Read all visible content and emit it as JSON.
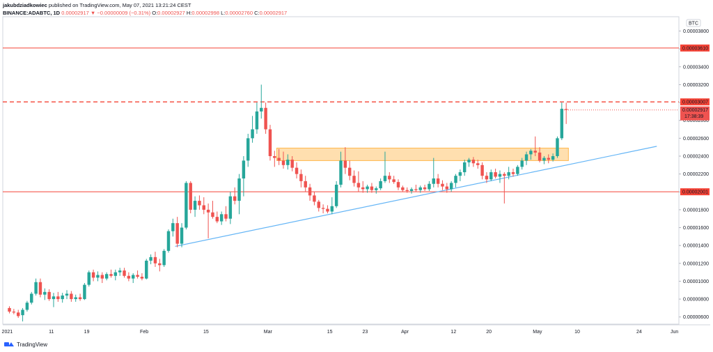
{
  "header": {
    "author": "jakubdziadkowiec",
    "published": "published on TradingView.com, May 07, 2021 13:21:24 CEST",
    "symbol": "BINANCE:ADABTC, 1D",
    "last": "0.00002917",
    "change": "▼ −0.00000009 (−0.31%)",
    "o_label": "O:",
    "o_value": "0.00002927",
    "h_label": "H:",
    "h_value": "0.00002998",
    "l_label": "L:",
    "l_value": "0.00002760",
    "c_label": "C:",
    "c_value": "0.00002917"
  },
  "footer": {
    "brand": "TradingView"
  },
  "colors": {
    "up": "#26a69a",
    "down": "#ef5350",
    "zone": "#ffb74d",
    "trend": "#64b5f6",
    "level": "#f44336"
  },
  "chart_data": {
    "type": "candlestick",
    "currency_badge": "BTC",
    "y_ticks": [
      "0.00003800",
      "0.00003600",
      "0.00003400",
      "0.00003200",
      "0.00003000",
      "0.00002800",
      "0.00002600",
      "0.00002400",
      "0.00002200",
      "0.00002000",
      "0.00001800",
      "0.00001600",
      "0.00001400",
      "0.00001200",
      "0.00001000",
      "0.00000800",
      "0.00000600"
    ],
    "y_range": [
      5.2e-06,
      3.96e-05
    ],
    "x_ticks": [
      {
        "label": "2021",
        "date": "2021-01-01"
      },
      {
        "label": "11",
        "date": "2021-01-11"
      },
      {
        "label": "19",
        "date": "2021-01-19"
      },
      {
        "label": "Feb",
        "date": "2021-02-01"
      },
      {
        "label": "15",
        "date": "2021-02-15"
      },
      {
        "label": "Mar",
        "date": "2021-03-01"
      },
      {
        "label": "15",
        "date": "2021-03-15"
      },
      {
        "label": "23",
        "date": "2021-03-23"
      },
      {
        "label": "Apr",
        "date": "2021-04-01"
      },
      {
        "label": "12",
        "date": "2021-04-12"
      },
      {
        "label": "20",
        "date": "2021-04-20"
      },
      {
        "label": "May",
        "date": "2021-05-01"
      },
      {
        "label": "10",
        "date": "2021-05-10"
      },
      {
        "label": "24",
        "date": "2021-05-24"
      },
      {
        "label": "Jun",
        "date": "2021-06-01"
      }
    ],
    "x_range": [
      "2020-12-31",
      "2021-06-02"
    ],
    "horizontal_levels": [
      {
        "price": 3.61e-05,
        "label": "0.00003610",
        "style": "solid"
      },
      {
        "price": 3.007e-05,
        "label": "0.00003007",
        "style": "dashed"
      },
      {
        "price": 2.001e-05,
        "label": "0.00002001",
        "style": "solid"
      }
    ],
    "last_price": {
      "price": 2.917e-05,
      "label": "0.00002917",
      "countdown": "17:38:39"
    },
    "zone": {
      "from": "2021-03-03",
      "to": "2021-05-08",
      "low": 2.35e-05,
      "high": 2.49e-05
    },
    "trendline": {
      "from": {
        "date": "2021-02-08",
        "price": 1.39e-05
      },
      "to": {
        "date": "2021-05-28",
        "price": 2.51e-05
      }
    },
    "candles": [
      {
        "d": "2021-01-01",
        "o": 7e-06,
        "h": 7.2e-06,
        "l": 6.4e-06,
        "c": 6.6e-06
      },
      {
        "d": "2021-01-02",
        "o": 6.6e-06,
        "h": 6.9e-06,
        "l": 6.3e-06,
        "c": 6.5e-06
      },
      {
        "d": "2021-01-03",
        "o": 6.5e-06,
        "h": 6.8e-06,
        "l": 5.9e-06,
        "c": 6.1e-06
      },
      {
        "d": "2021-01-04",
        "o": 6.2e-06,
        "h": 7e-06,
        "l": 5.5e-06,
        "c": 6.8e-06
      },
      {
        "d": "2021-01-05",
        "o": 6.8e-06,
        "h": 7.8e-06,
        "l": 6.6e-06,
        "c": 7.6e-06
      },
      {
        "d": "2021-01-06",
        "o": 7.6e-06,
        "h": 8.8e-06,
        "l": 7.4e-06,
        "c": 8.6e-06
      },
      {
        "d": "2021-01-07",
        "o": 8.6e-06,
        "h": 1.03e-05,
        "l": 8.4e-06,
        "c": 9.9e-06
      },
      {
        "d": "2021-01-08",
        "o": 9.9e-06,
        "h": 1.03e-05,
        "l": 8.2e-06,
        "c": 8.5e-06
      },
      {
        "d": "2021-01-09",
        "o": 8.5e-06,
        "h": 9.2e-06,
        "l": 7.9e-06,
        "c": 8.8e-06
      },
      {
        "d": "2021-01-10",
        "o": 8.8e-06,
        "h": 9.1e-06,
        "l": 7.8e-06,
        "c": 8e-06
      },
      {
        "d": "2021-01-11",
        "o": 8e-06,
        "h": 8.7e-06,
        "l": 7.1e-06,
        "c": 8.3e-06
      },
      {
        "d": "2021-01-12",
        "o": 8.3e-06,
        "h": 8.8e-06,
        "l": 7.7e-06,
        "c": 8e-06
      },
      {
        "d": "2021-01-13",
        "o": 8e-06,
        "h": 8.7e-06,
        "l": 7.6e-06,
        "c": 8.4e-06
      },
      {
        "d": "2021-01-14",
        "o": 8.4e-06,
        "h": 9e-06,
        "l": 8e-06,
        "c": 8.6e-06
      },
      {
        "d": "2021-01-15",
        "o": 8.6e-06,
        "h": 8.9e-06,
        "l": 7.7e-06,
        "c": 8e-06
      },
      {
        "d": "2021-01-16",
        "o": 8e-06,
        "h": 8.5e-06,
        "l": 7.7e-06,
        "c": 8.2e-06
      },
      {
        "d": "2021-01-17",
        "o": 8.2e-06,
        "h": 8.6e-06,
        "l": 7.8e-06,
        "c": 8e-06
      },
      {
        "d": "2021-01-18",
        "o": 8e-06,
        "h": 9.8e-06,
        "l": 7.9e-06,
        "c": 9.6e-06
      },
      {
        "d": "2021-01-19",
        "o": 9.6e-06,
        "h": 1.12e-05,
        "l": 9.4e-06,
        "c": 1.1e-05
      },
      {
        "d": "2021-01-20",
        "o": 1.1e-05,
        "h": 1.13e-05,
        "l": 1e-05,
        "c": 1.04e-05
      },
      {
        "d": "2021-01-21",
        "o": 1.04e-05,
        "h": 1.11e-05,
        "l": 1e-05,
        "c": 1.07e-05
      },
      {
        "d": "2021-01-22",
        "o": 1.07e-05,
        "h": 1.1e-05,
        "l": 9.8e-06,
        "c": 1.03e-05
      },
      {
        "d": "2021-01-23",
        "o": 1.03e-05,
        "h": 1.1e-05,
        "l": 1.01e-05,
        "c": 1.08e-05
      },
      {
        "d": "2021-01-24",
        "o": 1.08e-05,
        "h": 1.13e-05,
        "l": 1.04e-05,
        "c": 1.06e-05
      },
      {
        "d": "2021-01-25",
        "o": 1.06e-05,
        "h": 1.13e-05,
        "l": 1.01e-05,
        "c": 1.1e-05
      },
      {
        "d": "2021-01-26",
        "o": 1.1e-05,
        "h": 1.15e-05,
        "l": 1.06e-05,
        "c": 1.12e-05
      },
      {
        "d": "2021-01-27",
        "o": 1.12e-05,
        "h": 1.15e-05,
        "l": 1.04e-05,
        "c": 1.06e-05
      },
      {
        "d": "2021-01-28",
        "o": 1.06e-05,
        "h": 1.1e-05,
        "l": 1e-05,
        "c": 1.03e-05
      },
      {
        "d": "2021-01-29",
        "o": 1.03e-05,
        "h": 1.09e-05,
        "l": 9.8e-06,
        "c": 1.07e-05
      },
      {
        "d": "2021-01-30",
        "o": 1.07e-05,
        "h": 1.12e-05,
        "l": 1.03e-05,
        "c": 1.05e-05
      },
      {
        "d": "2021-01-31",
        "o": 1.05e-05,
        "h": 1.09e-05,
        "l": 1.01e-05,
        "c": 1.03e-05
      },
      {
        "d": "2021-02-01",
        "o": 1.03e-05,
        "h": 1.25e-05,
        "l": 1.02e-05,
        "c": 1.23e-05
      },
      {
        "d": "2021-02-02",
        "o": 1.23e-05,
        "h": 1.3e-05,
        "l": 1.19e-05,
        "c": 1.27e-05
      },
      {
        "d": "2021-02-03",
        "o": 1.27e-05,
        "h": 1.33e-05,
        "l": 1.16e-05,
        "c": 1.2e-05
      },
      {
        "d": "2021-02-04",
        "o": 1.2e-05,
        "h": 1.25e-05,
        "l": 1.11e-05,
        "c": 1.18e-05
      },
      {
        "d": "2021-02-05",
        "o": 1.18e-05,
        "h": 1.36e-05,
        "l": 1.16e-05,
        "c": 1.34e-05
      },
      {
        "d": "2021-02-06",
        "o": 1.34e-05,
        "h": 1.58e-05,
        "l": 1.32e-05,
        "c": 1.56e-05
      },
      {
        "d": "2021-02-07",
        "o": 1.56e-05,
        "h": 1.7e-05,
        "l": 1.5e-05,
        "c": 1.65e-05
      },
      {
        "d": "2021-02-08",
        "o": 1.65e-05,
        "h": 1.72e-05,
        "l": 1.38e-05,
        "c": 1.42e-05
      },
      {
        "d": "2021-02-09",
        "o": 1.42e-05,
        "h": 1.65e-05,
        "l": 1.38e-05,
        "c": 1.6e-05
      },
      {
        "d": "2021-02-10",
        "o": 1.6e-05,
        "h": 2.12e-05,
        "l": 1.58e-05,
        "c": 2.1e-05
      },
      {
        "d": "2021-02-11",
        "o": 2.1e-05,
        "h": 2.12e-05,
        "l": 1.76e-05,
        "c": 1.8e-05
      },
      {
        "d": "2021-02-12",
        "o": 1.8e-05,
        "h": 1.95e-05,
        "l": 1.72e-05,
        "c": 1.9e-05
      },
      {
        "d": "2021-02-13",
        "o": 1.9e-05,
        "h": 1.96e-05,
        "l": 1.8e-05,
        "c": 1.85e-05
      },
      {
        "d": "2021-02-14",
        "o": 1.85e-05,
        "h": 1.94e-05,
        "l": 1.75e-05,
        "c": 1.8e-05
      },
      {
        "d": "2021-02-15",
        "o": 1.8e-05,
        "h": 1.87e-05,
        "l": 1.48e-05,
        "c": 1.77e-05
      },
      {
        "d": "2021-02-16",
        "o": 1.77e-05,
        "h": 1.9e-05,
        "l": 1.7e-05,
        "c": 1.72e-05
      },
      {
        "d": "2021-02-17",
        "o": 1.72e-05,
        "h": 1.78e-05,
        "l": 1.65e-05,
        "c": 1.67e-05
      },
      {
        "d": "2021-02-18",
        "o": 1.67e-05,
        "h": 1.78e-05,
        "l": 1.63e-05,
        "c": 1.75e-05
      },
      {
        "d": "2021-02-19",
        "o": 1.75e-05,
        "h": 1.84e-05,
        "l": 1.67e-05,
        "c": 1.7e-05
      },
      {
        "d": "2021-02-20",
        "o": 1.7e-05,
        "h": 2e-05,
        "l": 1.64e-05,
        "c": 1.95e-05
      },
      {
        "d": "2021-02-21",
        "o": 1.95e-05,
        "h": 2.05e-05,
        "l": 1.86e-05,
        "c": 1.9e-05
      },
      {
        "d": "2021-02-22",
        "o": 1.9e-05,
        "h": 2.2e-05,
        "l": 1.75e-05,
        "c": 2.15e-05
      },
      {
        "d": "2021-02-23",
        "o": 2.15e-05,
        "h": 2.4e-05,
        "l": 1.95e-05,
        "c": 2.35e-05
      },
      {
        "d": "2021-02-24",
        "o": 2.35e-05,
        "h": 2.65e-05,
        "l": 2.28e-05,
        "c": 2.6e-05
      },
      {
        "d": "2021-02-25",
        "o": 2.6e-05,
        "h": 2.85e-05,
        "l": 2.55e-05,
        "c": 2.7e-05
      },
      {
        "d": "2021-02-26",
        "o": 2.7e-05,
        "h": 3e-05,
        "l": 2.65e-05,
        "c": 2.9e-05
      },
      {
        "d": "2021-02-27",
        "o": 2.9e-05,
        "h": 3.2e-05,
        "l": 2.82e-05,
        "c": 2.94e-05
      },
      {
        "d": "2021-02-28",
        "o": 2.94e-05,
        "h": 3e-05,
        "l": 2.65e-05,
        "c": 2.7e-05
      },
      {
        "d": "2021-03-01",
        "o": 2.7e-05,
        "h": 2.75e-05,
        "l": 2.35e-05,
        "c": 2.4e-05
      },
      {
        "d": "2021-03-02",
        "o": 2.4e-05,
        "h": 2.46e-05,
        "l": 2.28e-05,
        "c": 2.38e-05
      },
      {
        "d": "2021-03-03",
        "o": 2.38e-05,
        "h": 2.48e-05,
        "l": 2.3e-05,
        "c": 2.35e-05
      },
      {
        "d": "2021-03-04",
        "o": 2.35e-05,
        "h": 2.45e-05,
        "l": 2.26e-05,
        "c": 2.3e-05
      },
      {
        "d": "2021-03-05",
        "o": 2.3e-05,
        "h": 2.42e-05,
        "l": 2.25e-05,
        "c": 2.36e-05
      },
      {
        "d": "2021-03-06",
        "o": 2.36e-05,
        "h": 2.4e-05,
        "l": 2.23e-05,
        "c": 2.27e-05
      },
      {
        "d": "2021-03-07",
        "o": 2.27e-05,
        "h": 2.33e-05,
        "l": 2.15e-05,
        "c": 2.2e-05
      },
      {
        "d": "2021-03-08",
        "o": 2.2e-05,
        "h": 2.25e-05,
        "l": 2.05e-05,
        "c": 2.12e-05
      },
      {
        "d": "2021-03-09",
        "o": 2.12e-05,
        "h": 2.18e-05,
        "l": 2e-05,
        "c": 2.05e-05
      },
      {
        "d": "2021-03-10",
        "o": 2.05e-05,
        "h": 2.09e-05,
        "l": 1.9e-05,
        "c": 1.96e-05
      },
      {
        "d": "2021-03-11",
        "o": 1.96e-05,
        "h": 2e-05,
        "l": 1.85e-05,
        "c": 1.89e-05
      },
      {
        "d": "2021-03-12",
        "o": 1.89e-05,
        "h": 1.91e-05,
        "l": 1.78e-05,
        "c": 1.82e-05
      },
      {
        "d": "2021-03-13",
        "o": 1.82e-05,
        "h": 1.86e-05,
        "l": 1.76e-05,
        "c": 1.81e-05
      },
      {
        "d": "2021-03-14",
        "o": 1.81e-05,
        "h": 1.85e-05,
        "l": 1.76e-05,
        "c": 1.78e-05
      },
      {
        "d": "2021-03-15",
        "o": 1.78e-05,
        "h": 1.94e-05,
        "l": 1.75e-05,
        "c": 1.84e-05
      },
      {
        "d": "2021-03-16",
        "o": 1.84e-05,
        "h": 2.12e-05,
        "l": 1.82e-05,
        "c": 2.08e-05
      },
      {
        "d": "2021-03-17",
        "o": 2.08e-05,
        "h": 2.45e-05,
        "l": 2.05e-05,
        "c": 2.35e-05
      },
      {
        "d": "2021-03-18",
        "o": 2.35e-05,
        "h": 2.5e-05,
        "l": 2.2e-05,
        "c": 2.27e-05
      },
      {
        "d": "2021-03-19",
        "o": 2.27e-05,
        "h": 2.35e-05,
        "l": 2.13e-05,
        "c": 2.18e-05
      },
      {
        "d": "2021-03-20",
        "o": 2.18e-05,
        "h": 2.24e-05,
        "l": 2.06e-05,
        "c": 2.1e-05
      },
      {
        "d": "2021-03-21",
        "o": 2.1e-05,
        "h": 2.23e-05,
        "l": 2e-05,
        "c": 2.05e-05
      },
      {
        "d": "2021-03-22",
        "o": 2.05e-05,
        "h": 2.12e-05,
        "l": 1.99e-05,
        "c": 2.03e-05
      },
      {
        "d": "2021-03-23",
        "o": 2.03e-05,
        "h": 2.08e-05,
        "l": 1.99e-05,
        "c": 2.06e-05
      },
      {
        "d": "2021-03-24",
        "o": 2.06e-05,
        "h": 2.1e-05,
        "l": 1.99e-05,
        "c": 2.02e-05
      },
      {
        "d": "2021-03-25",
        "o": 2.02e-05,
        "h": 2.06e-05,
        "l": 1.98e-05,
        "c": 2.04e-05
      },
      {
        "d": "2021-03-26",
        "o": 2.04e-05,
        "h": 2.15e-05,
        "l": 2.02e-05,
        "c": 2.12e-05
      },
      {
        "d": "2021-03-27",
        "o": 2.12e-05,
        "h": 2.45e-05,
        "l": 2.1e-05,
        "c": 2.18e-05
      },
      {
        "d": "2021-03-28",
        "o": 2.18e-05,
        "h": 2.22e-05,
        "l": 2.1e-05,
        "c": 2.14e-05
      },
      {
        "d": "2021-03-29",
        "o": 2.14e-05,
        "h": 2.18e-05,
        "l": 2.09e-05,
        "c": 2.11e-05
      },
      {
        "d": "2021-03-30",
        "o": 2.11e-05,
        "h": 2.14e-05,
        "l": 2.02e-05,
        "c": 2.05e-05
      },
      {
        "d": "2021-03-31",
        "o": 2.05e-05,
        "h": 2.07e-05,
        "l": 2e-05,
        "c": 2.02e-05
      },
      {
        "d": "2021-04-01",
        "o": 2.02e-05,
        "h": 2.05e-05,
        "l": 1.99e-05,
        "c": 2.01e-05
      },
      {
        "d": "2021-04-02",
        "o": 2.01e-05,
        "h": 2.05e-05,
        "l": 1.98e-05,
        "c": 2.03e-05
      },
      {
        "d": "2021-04-03",
        "o": 2.03e-05,
        "h": 2.08e-05,
        "l": 2e-05,
        "c": 2.02e-05
      },
      {
        "d": "2021-04-04",
        "o": 2.02e-05,
        "h": 2.07e-05,
        "l": 1.99e-05,
        "c": 2.05e-05
      },
      {
        "d": "2021-04-05",
        "o": 2.05e-05,
        "h": 2.08e-05,
        "l": 2.01e-05,
        "c": 2.03e-05
      },
      {
        "d": "2021-04-06",
        "o": 2.03e-05,
        "h": 2.12e-05,
        "l": 2.01e-05,
        "c": 2.09e-05
      },
      {
        "d": "2021-04-07",
        "o": 2.09e-05,
        "h": 2.38e-05,
        "l": 2.05e-05,
        "c": 2.15e-05
      },
      {
        "d": "2021-04-08",
        "o": 2.15e-05,
        "h": 2.2e-05,
        "l": 2.05e-05,
        "c": 2.09e-05
      },
      {
        "d": "2021-04-09",
        "o": 2.09e-05,
        "h": 2.13e-05,
        "l": 2.02e-05,
        "c": 2.06e-05
      },
      {
        "d": "2021-04-10",
        "o": 2.06e-05,
        "h": 2.1e-05,
        "l": 1.99e-05,
        "c": 2.03e-05
      },
      {
        "d": "2021-04-11",
        "o": 2.03e-05,
        "h": 2.12e-05,
        "l": 2e-05,
        "c": 2.1e-05
      },
      {
        "d": "2021-04-12",
        "o": 2.1e-05,
        "h": 2.2e-05,
        "l": 2.05e-05,
        "c": 2.18e-05
      },
      {
        "d": "2021-04-13",
        "o": 2.18e-05,
        "h": 2.25e-05,
        "l": 2.12e-05,
        "c": 2.22e-05
      },
      {
        "d": "2021-04-14",
        "o": 2.22e-05,
        "h": 2.36e-05,
        "l": 2.18e-05,
        "c": 2.33e-05
      },
      {
        "d": "2021-04-15",
        "o": 2.33e-05,
        "h": 2.38e-05,
        "l": 2.28e-05,
        "c": 2.36e-05
      },
      {
        "d": "2021-04-16",
        "o": 2.36e-05,
        "h": 2.39e-05,
        "l": 2.28e-05,
        "c": 2.32e-05
      },
      {
        "d": "2021-04-17",
        "o": 2.32e-05,
        "h": 2.36e-05,
        "l": 2.26e-05,
        "c": 2.3e-05
      },
      {
        "d": "2021-04-18",
        "o": 2.3e-05,
        "h": 2.33e-05,
        "l": 2.14e-05,
        "c": 2.18e-05
      },
      {
        "d": "2021-04-19",
        "o": 2.18e-05,
        "h": 2.22e-05,
        "l": 2.1e-05,
        "c": 2.14e-05
      },
      {
        "d": "2021-04-20",
        "o": 2.14e-05,
        "h": 2.25e-05,
        "l": 2.12e-05,
        "c": 2.22e-05
      },
      {
        "d": "2021-04-21",
        "o": 2.22e-05,
        "h": 2.26e-05,
        "l": 2.15e-05,
        "c": 2.17e-05
      },
      {
        "d": "2021-04-22",
        "o": 2.17e-05,
        "h": 2.24e-05,
        "l": 2.1e-05,
        "c": 2.2e-05
      },
      {
        "d": "2021-04-23",
        "o": 2.2e-05,
        "h": 2.22e-05,
        "l": 1.87e-05,
        "c": 2.18e-05
      },
      {
        "d": "2021-04-24",
        "o": 2.18e-05,
        "h": 2.28e-05,
        "l": 2.14e-05,
        "c": 2.22e-05
      },
      {
        "d": "2021-04-25",
        "o": 2.22e-05,
        "h": 2.26e-05,
        "l": 2.17e-05,
        "c": 2.2e-05
      },
      {
        "d": "2021-04-26",
        "o": 2.2e-05,
        "h": 2.3e-05,
        "l": 2.18e-05,
        "c": 2.28e-05
      },
      {
        "d": "2021-04-27",
        "o": 2.28e-05,
        "h": 2.38e-05,
        "l": 2.25e-05,
        "c": 2.35e-05
      },
      {
        "d": "2021-04-28",
        "o": 2.35e-05,
        "h": 2.45e-05,
        "l": 2.3e-05,
        "c": 2.42e-05
      },
      {
        "d": "2021-04-29",
        "o": 2.42e-05,
        "h": 2.48e-05,
        "l": 2.36e-05,
        "c": 2.46e-05
      },
      {
        "d": "2021-04-30",
        "o": 2.46e-05,
        "h": 2.62e-05,
        "l": 2.4e-05,
        "c": 2.44e-05
      },
      {
        "d": "2021-05-01",
        "o": 2.44e-05,
        "h": 2.5e-05,
        "l": 2.33e-05,
        "c": 2.35e-05
      },
      {
        "d": "2021-05-02",
        "o": 2.35e-05,
        "h": 2.4e-05,
        "l": 2.31e-05,
        "c": 2.38e-05
      },
      {
        "d": "2021-05-03",
        "o": 2.38e-05,
        "h": 2.42e-05,
        "l": 2.32e-05,
        "c": 2.36e-05
      },
      {
        "d": "2021-05-04",
        "o": 2.36e-05,
        "h": 2.43e-05,
        "l": 2.34e-05,
        "c": 2.4e-05
      },
      {
        "d": "2021-05-05",
        "o": 2.4e-05,
        "h": 2.62e-05,
        "l": 2.38e-05,
        "c": 2.6e-05
      },
      {
        "d": "2021-05-06",
        "o": 2.6e-05,
        "h": 3e-05,
        "l": 2.58e-05,
        "c": 2.93e-05
      },
      {
        "d": "2021-05-07",
        "o": 2.927e-05,
        "h": 2.998e-05,
        "l": 2.76e-05,
        "c": 2.917e-05
      }
    ]
  }
}
